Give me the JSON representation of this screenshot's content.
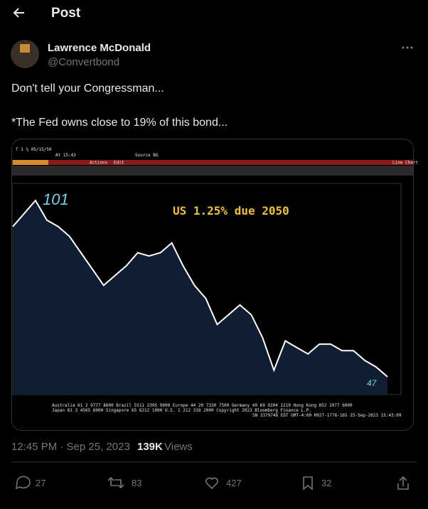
{
  "header": {
    "title": "Post"
  },
  "author": {
    "name": "Lawrence McDonald",
    "handle": "@Convertbond"
  },
  "text": [
    "Don't tell your Congressman...",
    "*The Fed owns close to 19% of this bond..."
  ],
  "image": {
    "top": {
      "ticker": "T 1 ¼ 05/15/50",
      "time": "At 15:43",
      "source": "Source BG"
    },
    "toolbar": {
      "actions": "Actions",
      "edit": "Edit",
      "chart_type": "Line Chart"
    },
    "title": "US 1.25% due 2050",
    "labels": {
      "high": "101",
      "low": "47"
    },
    "chart": {
      "type": "line",
      "color": "#ffffff",
      "values": [
        93,
        97,
        101,
        95,
        93,
        90,
        85,
        80,
        75,
        78,
        81,
        85,
        84,
        85,
        88,
        81,
        75,
        71,
        63,
        66,
        69,
        66,
        59,
        49,
        58,
        56,
        54,
        57,
        57,
        55,
        55,
        52,
        50,
        47
      ]
    },
    "footer": [
      "Australia 61 2 9777 8600 Brazil 5511 2395 9000 Europe 44 20 7330 7500 Germany 49 69 9204 1210 Hong Kong 852 2977 6000",
      "Japan 81 3 4565 8900      Singapore 65 6212 1000      U.S. 1 212 318 2000          Copyright 2023 Bloomberg Finance L.P.",
      "SN 3379748 EDT  GMT-4:00 H927-1776-165 25-Sep-2023 15:43:09"
    ]
  },
  "meta": {
    "time": "12:45 PM · Sep 25, 2023",
    "views_count": "139K",
    "views_label": "Views"
  },
  "actions": {
    "replies": 27,
    "reposts": 83,
    "likes": 427,
    "bookmarks": 32
  }
}
